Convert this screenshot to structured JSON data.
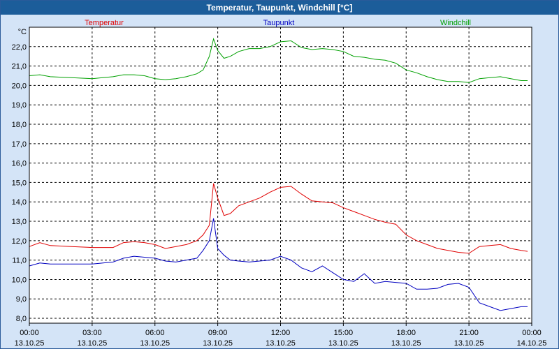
{
  "window": {
    "title": "Temperatur, Taupunkt, Windchill [°C]"
  },
  "chart_data": {
    "type": "line",
    "title": "Temperatur, Taupunkt, Windchill [°C]",
    "ylabel": "°C",
    "ylim": [
      7.75,
      23.0
    ],
    "yticks": [
      "8,0",
      "9,0",
      "10,0",
      "11,0",
      "12,0",
      "13,0",
      "14,0",
      "15,0",
      "16,0",
      "17,0",
      "18,0",
      "19,0",
      "20,0",
      "21,0",
      "22,0"
    ],
    "ytick_values": [
      8,
      9,
      10,
      11,
      12,
      13,
      14,
      15,
      16,
      17,
      18,
      19,
      20,
      21,
      22
    ],
    "xlim": [
      0,
      24
    ],
    "xtick_values": [
      0,
      3,
      6,
      9,
      12,
      15,
      18,
      21,
      24
    ],
    "xticks": [
      {
        "time": "00:00",
        "date": "13.10.25"
      },
      {
        "time": "03:00",
        "date": "13.10.25"
      },
      {
        "time": "06:00",
        "date": "13.10.25"
      },
      {
        "time": "09:00",
        "date": "13.10.25"
      },
      {
        "time": "12:00",
        "date": "13.10.25"
      },
      {
        "time": "15:00",
        "date": "13.10.25"
      },
      {
        "time": "18:00",
        "date": "13.10.25"
      },
      {
        "time": "21:00",
        "date": "13.10.25"
      },
      {
        "time": "00:00",
        "date": "14.10.25"
      }
    ],
    "grid": true,
    "legend_position": "top",
    "series": [
      {
        "name": "Temperatur",
        "color": "#e00000",
        "x": [
          0,
          0.5,
          1,
          2,
          3,
          4,
          4.5,
          5,
          5.5,
          6,
          6.5,
          7,
          7.5,
          8,
          8.3,
          8.6,
          8.8,
          9,
          9.3,
          9.6,
          10,
          10.5,
          11,
          11.5,
          12,
          12.5,
          13,
          13.5,
          14,
          14.5,
          15,
          15.5,
          16,
          16.5,
          17,
          17.5,
          18,
          18.5,
          19,
          19.5,
          20,
          20.5,
          21,
          21.5,
          22,
          22.5,
          23,
          23.5,
          23.8
        ],
        "values": [
          11.7,
          11.9,
          11.75,
          11.7,
          11.65,
          11.65,
          11.9,
          11.95,
          11.9,
          11.8,
          11.6,
          11.7,
          11.8,
          12.0,
          12.3,
          12.8,
          14.95,
          14.2,
          13.3,
          13.4,
          13.8,
          14.0,
          14.2,
          14.5,
          14.75,
          14.8,
          14.4,
          14.05,
          14.0,
          13.95,
          13.7,
          13.5,
          13.3,
          13.1,
          12.95,
          12.85,
          12.3,
          12.0,
          11.8,
          11.6,
          11.5,
          11.4,
          11.35,
          11.7,
          11.75,
          11.8,
          11.6,
          11.5,
          11.45
        ]
      },
      {
        "name": "Taupunkt",
        "color": "#0000c0",
        "x": [
          0,
          0.5,
          1,
          2,
          3,
          4,
          4.5,
          5,
          5.5,
          6,
          6.5,
          7,
          7.5,
          8,
          8.3,
          8.6,
          8.8,
          9,
          9.3,
          9.6,
          10,
          10.5,
          11,
          11.5,
          12,
          12.5,
          13,
          13.5,
          14,
          14.5,
          15,
          15.5,
          16,
          16.5,
          17,
          17.5,
          18,
          18.5,
          19,
          19.5,
          20,
          20.5,
          21,
          21.5,
          22,
          22.5,
          23,
          23.5,
          23.8
        ],
        "values": [
          10.7,
          10.85,
          10.8,
          10.8,
          10.8,
          10.9,
          11.1,
          11.2,
          11.15,
          11.1,
          10.95,
          10.9,
          11.0,
          11.1,
          11.5,
          12.0,
          13.15,
          11.6,
          11.25,
          11.0,
          10.95,
          10.9,
          10.95,
          11.0,
          11.2,
          11.0,
          10.6,
          10.4,
          10.7,
          10.35,
          10.0,
          9.9,
          10.3,
          9.8,
          9.9,
          9.85,
          9.8,
          9.5,
          9.5,
          9.55,
          9.75,
          9.8,
          9.6,
          8.8,
          8.6,
          8.4,
          8.5,
          8.6,
          8.6
        ]
      },
      {
        "name": "Windchill",
        "color": "#00a000",
        "x": [
          0,
          0.5,
          1,
          2,
          3,
          3.5,
          4,
          4.5,
          5,
          5.5,
          6,
          6.5,
          7,
          7.5,
          8,
          8.3,
          8.6,
          8.8,
          9,
          9.3,
          9.6,
          10,
          10.5,
          11,
          11.5,
          12,
          12.5,
          13,
          13.5,
          14,
          14.5,
          15,
          15.5,
          16,
          16.5,
          17,
          17.5,
          18,
          18.5,
          19,
          19.5,
          20,
          20.5,
          21,
          21.5,
          22,
          22.5,
          23,
          23.5,
          23.8
        ],
        "values": [
          20.5,
          20.55,
          20.45,
          20.4,
          20.35,
          20.4,
          20.45,
          20.55,
          20.55,
          20.5,
          20.35,
          20.3,
          20.35,
          20.45,
          20.6,
          20.8,
          21.5,
          22.4,
          21.8,
          21.4,
          21.5,
          21.75,
          21.9,
          21.9,
          22.0,
          22.25,
          22.3,
          21.95,
          21.85,
          21.9,
          21.85,
          21.75,
          21.5,
          21.45,
          21.35,
          21.3,
          21.15,
          20.8,
          20.65,
          20.45,
          20.3,
          20.2,
          20.2,
          20.15,
          20.35,
          20.4,
          20.45,
          20.35,
          20.25,
          20.25
        ]
      }
    ]
  }
}
